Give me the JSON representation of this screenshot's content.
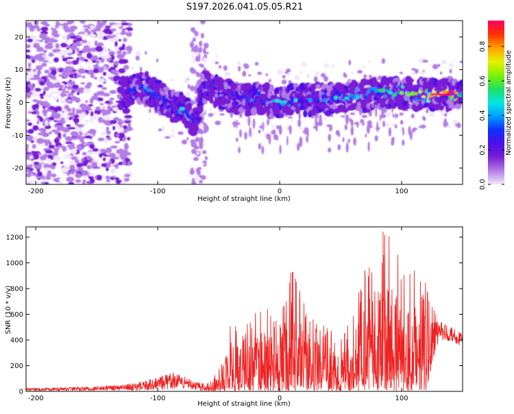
{
  "title": "S197.2026.041.05.05.R21",
  "chart_data": [
    {
      "type": "heatmap",
      "name": "spectrogram",
      "xlabel": "Height of straight line (km)",
      "ylabel": "Frequency (Hz)",
      "xlim": [
        -208,
        150
      ],
      "ylim": [
        -25,
        25
      ],
      "xticks": [
        -200,
        -100,
        0,
        100
      ],
      "xtick_labels": [
        "-200",
        "-100",
        "0",
        "100"
      ],
      "yticks": [
        -20,
        -10,
        0,
        10,
        20
      ],
      "ytick_labels": [
        "-20",
        "-10",
        "0",
        "10",
        "20"
      ],
      "colorbar": {
        "label": "Normalized spectral amplitude",
        "range": [
          0,
          0.95
        ],
        "ticks": [
          0,
          0.2,
          0.4,
          0.6,
          0.8
        ],
        "tick_labels": [
          "0.0",
          "0.2",
          "0.4",
          "0.6",
          "0.8"
        ],
        "colors": [
          "#f2e6fb",
          "#b37de6",
          "#7a1fd6",
          "#4a10e8",
          "#1030ff",
          "#00a0ff",
          "#00e8e0",
          "#20e060",
          "#80f000",
          "#e8f000",
          "#ffa000",
          "#ff3000",
          "#ff0060"
        ]
      },
      "ridge": {
        "description": "dominant spectral ridge",
        "x": [
          -130,
          -120,
          -110,
          -100,
          -90,
          -80,
          -75,
          -70,
          -60,
          -50,
          -40,
          -30,
          -20,
          -10,
          0,
          10,
          20,
          30,
          40,
          50,
          60,
          70,
          80,
          90,
          100,
          110,
          120,
          130,
          140,
          150
        ],
        "frequency": [
          3,
          4,
          5,
          2,
          -1,
          -2,
          -4,
          -6,
          6,
          3,
          2,
          1,
          1,
          0.5,
          0,
          0.5,
          1,
          1,
          1,
          1.5,
          2,
          2,
          3,
          3,
          3,
          2.5,
          2.5,
          2.5,
          2.5,
          2.5
        ],
        "amplitude": [
          0.25,
          0.3,
          0.35,
          0.3,
          0.35,
          0.4,
          0.35,
          0.25,
          0.3,
          0.2,
          0.25,
          0.3,
          0.35,
          0.35,
          0.4,
          0.45,
          0.4,
          0.35,
          0.35,
          0.4,
          0.45,
          0.4,
          0.45,
          0.5,
          0.55,
          0.6,
          0.65,
          0.8,
          0.95,
          0.7
        ]
      }
    },
    {
      "type": "line",
      "name": "snr",
      "xlabel": "Height of straight line (km)",
      "ylabel": "SNR (10 * v/v)",
      "xlim": [
        -208,
        150
      ],
      "ylim": [
        0,
        1280
      ],
      "xticks": [
        -200,
        -100,
        0,
        100
      ],
      "xtick_labels": [
        "-200",
        "-100",
        "0",
        "100"
      ],
      "yticks": [
        0,
        200,
        400,
        600,
        800,
        1000,
        1200
      ],
      "ytick_labels": [
        "0",
        "200",
        "400",
        "600",
        "800",
        "1000",
        "1200"
      ],
      "color": "#ee2222",
      "envelope": {
        "x": [
          -208,
          -180,
          -150,
          -120,
          -100,
          -90,
          -80,
          -70,
          -60,
          -50,
          -40,
          -30,
          -20,
          -10,
          0,
          5,
          10,
          20,
          30,
          40,
          50,
          60,
          70,
          80,
          85,
          90,
          95,
          100,
          110,
          120,
          125,
          130,
          140,
          150
        ],
        "min": [
          5,
          5,
          5,
          5,
          10,
          15,
          20,
          10,
          5,
          5,
          5,
          5,
          5,
          5,
          5,
          5,
          5,
          5,
          5,
          5,
          5,
          5,
          5,
          5,
          5,
          5,
          5,
          5,
          5,
          5,
          200,
          380,
          380,
          350
        ],
        "max": [
          25,
          30,
          40,
          60,
          110,
          150,
          130,
          80,
          60,
          160,
          550,
          480,
          620,
          730,
          520,
          820,
          1010,
          720,
          560,
          500,
          400,
          600,
          1000,
          1150,
          1260,
          1260,
          1100,
          1050,
          1000,
          850,
          700,
          550,
          520,
          450
        ]
      }
    }
  ]
}
